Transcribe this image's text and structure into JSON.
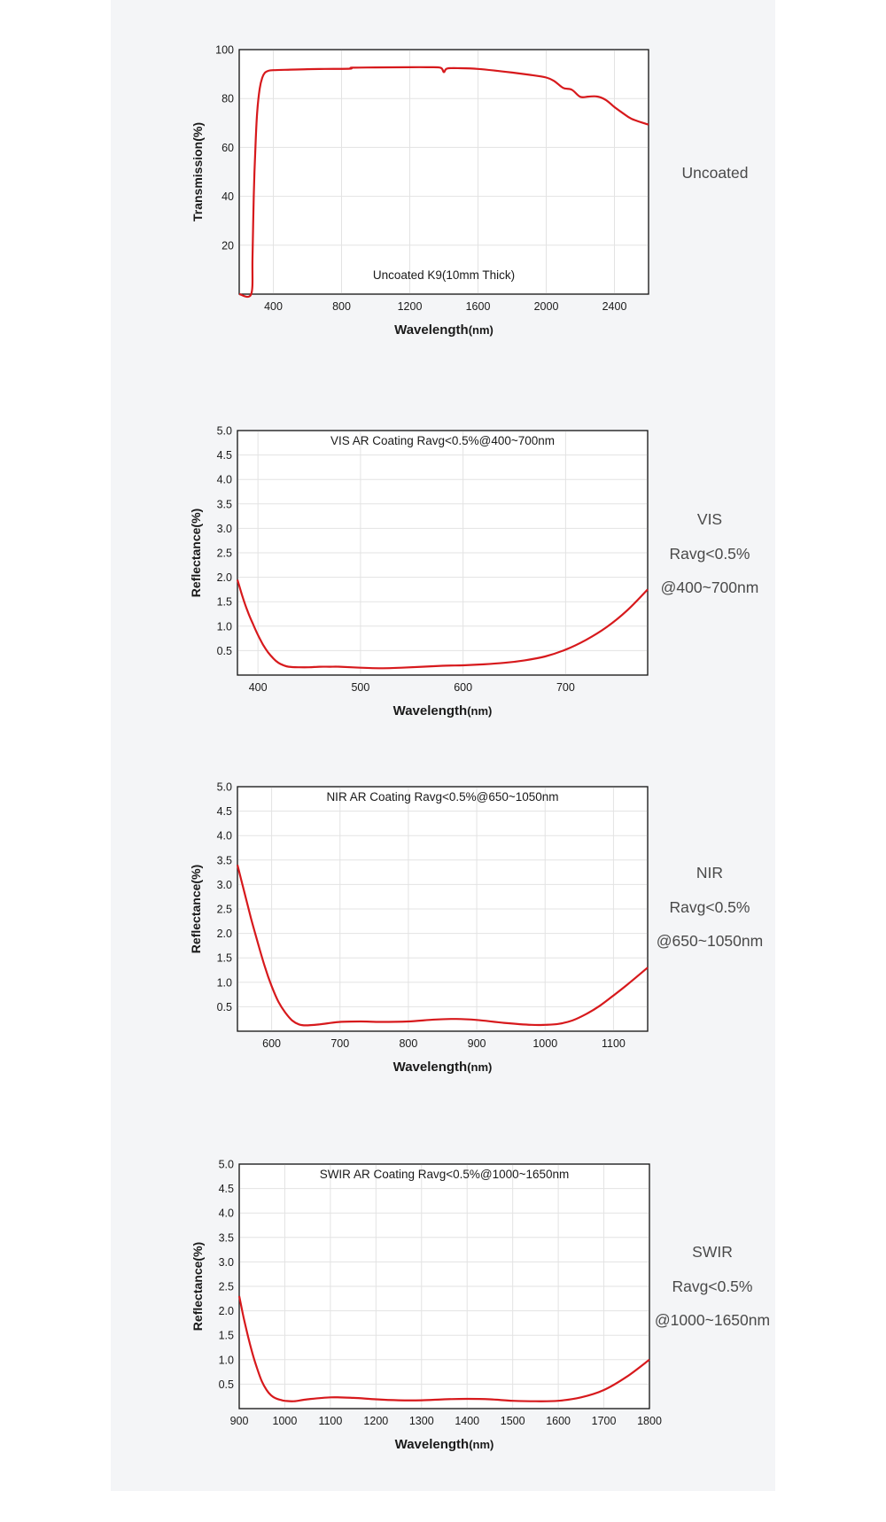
{
  "chart_data": [
    {
      "type": "line",
      "title": "Uncoated K9(10mm Thick)",
      "xlabel": "Wavelength",
      "xlabel_unit": "(nm)",
      "ylabel": "Transmission(%)",
      "xlim": [
        200,
        2600
      ],
      "ylim": [
        0,
        100
      ],
      "xticks": [
        400,
        800,
        1200,
        1600,
        2000,
        2400
      ],
      "yticks": [
        20,
        40,
        60,
        80,
        100
      ],
      "grid": true,
      "series": [
        {
          "color": "#d7191c",
          "x": [
            200,
            270,
            278,
            285,
            295,
            305,
            320,
            335,
            350,
            370,
            400,
            500,
            600,
            700,
            850,
            860,
            1000,
            1200,
            1300,
            1380,
            1400,
            1420,
            1500,
            1600,
            1700,
            1800,
            1900,
            2000,
            2050,
            2100,
            2150,
            2200,
            2250,
            2300,
            2350,
            2400,
            2450,
            2500,
            2600
          ],
          "y": [
            0,
            0,
            15,
            40,
            60,
            74,
            84,
            88.5,
            90.5,
            91.3,
            91.6,
            91.8,
            92,
            92.1,
            92.2,
            92.6,
            92.7,
            92.8,
            92.8,
            92.6,
            90.8,
            92.3,
            92.4,
            92.1,
            91.4,
            90.6,
            89.7,
            88.6,
            87,
            84.3,
            83.6,
            80.7,
            80.8,
            80.8,
            79.4,
            76.5,
            74,
            71.7,
            69.3
          ]
        }
      ]
    },
    {
      "type": "line",
      "title": "VIS AR Coating Ravg<0.5%@400~700nm",
      "xlabel": "Wavelength",
      "xlabel_unit": "(nm)",
      "ylabel": "Reflectance(%)",
      "xlim": [
        380,
        780
      ],
      "ylim": [
        0,
        5
      ],
      "xticks": [
        400,
        500,
        600,
        700
      ],
      "yticks": [
        0.5,
        1.0,
        1.5,
        2.0,
        2.5,
        3.0,
        3.5,
        4.0,
        4.5,
        5.0
      ],
      "grid": true,
      "series": [
        {
          "color": "#d7191c",
          "x": [
            380,
            385,
            390,
            395,
            400,
            405,
            410,
            415,
            420,
            425,
            430,
            440,
            450,
            460,
            470,
            480,
            500,
            520,
            540,
            560,
            580,
            600,
            620,
            640,
            660,
            680,
            700,
            720,
            740,
            760,
            780
          ],
          "y": [
            1.95,
            1.6,
            1.3,
            1.05,
            0.82,
            0.62,
            0.46,
            0.34,
            0.25,
            0.2,
            0.17,
            0.16,
            0.16,
            0.17,
            0.17,
            0.17,
            0.15,
            0.14,
            0.15,
            0.17,
            0.19,
            0.2,
            0.22,
            0.25,
            0.3,
            0.38,
            0.52,
            0.72,
            0.98,
            1.32,
            1.75
          ]
        }
      ]
    },
    {
      "type": "line",
      "title": "NIR AR Coating Ravg<0.5%@650~1050nm",
      "xlabel": "Wavelength",
      "xlabel_unit": "(nm)",
      "ylabel": "Reflectance(%)",
      "xlim": [
        550,
        1150
      ],
      "ylim": [
        0,
        5
      ],
      "xticks": [
        600,
        700,
        800,
        900,
        1000,
        1100
      ],
      "yticks": [
        0.5,
        1.0,
        1.5,
        2.0,
        2.5,
        3.0,
        3.5,
        4.0,
        4.5,
        5.0
      ],
      "grid": true,
      "series": [
        {
          "color": "#d7191c",
          "x": [
            550,
            560,
            570,
            580,
            590,
            600,
            610,
            620,
            630,
            640,
            650,
            670,
            700,
            730,
            760,
            800,
            840,
            870,
            900,
            940,
            980,
            1000,
            1020,
            1040,
            1060,
            1080,
            1100,
            1120,
            1150
          ],
          "y": [
            3.4,
            2.85,
            2.3,
            1.8,
            1.32,
            0.92,
            0.6,
            0.38,
            0.22,
            0.14,
            0.12,
            0.14,
            0.19,
            0.2,
            0.19,
            0.2,
            0.24,
            0.25,
            0.23,
            0.17,
            0.13,
            0.13,
            0.15,
            0.22,
            0.35,
            0.52,
            0.73,
            0.95,
            1.3
          ]
        }
      ]
    },
    {
      "type": "line",
      "title": "SWIR AR Coating Ravg<0.5%@1000~1650nm",
      "xlabel": "Wavelength",
      "xlabel_unit": "(nm)",
      "ylabel": "Reflectance(%)",
      "xlim": [
        900,
        1800
      ],
      "ylim": [
        0,
        5
      ],
      "xticks": [
        900,
        1000,
        1100,
        1200,
        1300,
        1400,
        1500,
        1600,
        1700,
        1800
      ],
      "yticks": [
        0.5,
        1.0,
        1.5,
        2.0,
        2.5,
        3.0,
        3.5,
        4.0,
        4.5,
        5.0
      ],
      "grid": true,
      "series": [
        {
          "color": "#d7191c",
          "x": [
            900,
            910,
            920,
            930,
            940,
            950,
            960,
            970,
            980,
            990,
            1000,
            1020,
            1050,
            1100,
            1150,
            1200,
            1250,
            1300,
            1350,
            1400,
            1450,
            1500,
            1550,
            1600,
            1650,
            1700,
            1750,
            1800
          ],
          "y": [
            2.3,
            1.85,
            1.45,
            1.1,
            0.8,
            0.55,
            0.38,
            0.27,
            0.21,
            0.18,
            0.16,
            0.15,
            0.19,
            0.23,
            0.22,
            0.19,
            0.17,
            0.17,
            0.19,
            0.2,
            0.19,
            0.16,
            0.15,
            0.16,
            0.23,
            0.38,
            0.65,
            1.0
          ]
        }
      ]
    }
  ],
  "side_labels": [
    {
      "lines": [
        "Uncoated"
      ]
    },
    {
      "lines": [
        "VIS",
        "Ravg<0.5%",
        "@400~700nm"
      ]
    },
    {
      "lines": [
        "NIR",
        "Ravg<0.5%",
        "@650~1050nm"
      ]
    },
    {
      "lines": [
        "SWIR",
        "Ravg<0.5%",
        "@1000~1650nm"
      ]
    }
  ]
}
